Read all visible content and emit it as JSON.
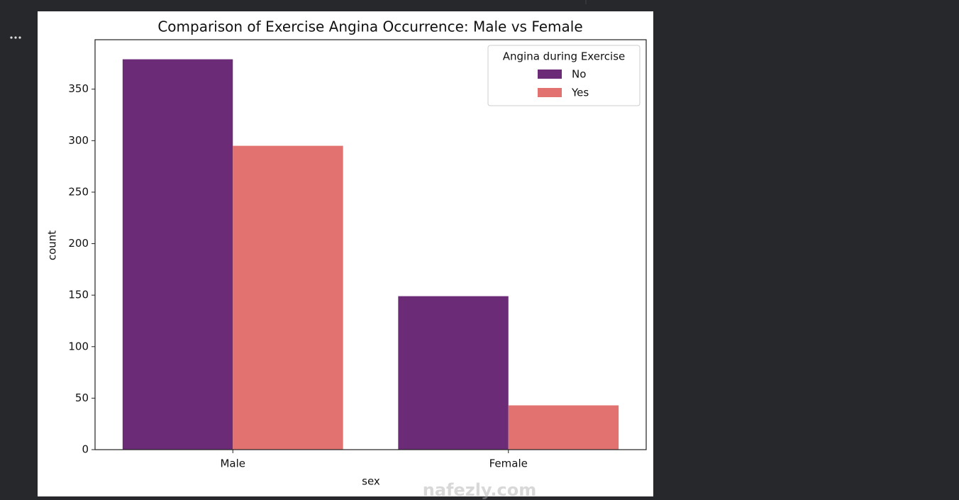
{
  "chart_data": {
    "type": "grouped_bar",
    "title": "Comparison of Exercise Angina Occurrence: Male vs Female",
    "x_label": "sex",
    "y_label": "count",
    "categories": [
      "Male",
      "Female"
    ],
    "legend_title": "Angina during Exercise",
    "legend_position": "upper right",
    "series": [
      {
        "name": "No",
        "color": "#6c2b77",
        "values": [
          379,
          149
        ]
      },
      {
        "name": "Yes",
        "color": "#e1726f",
        "values": [
          295,
          43
        ]
      }
    ],
    "ylim": [
      0,
      398
    ],
    "yticks": [
      0,
      50,
      100,
      150,
      200,
      250,
      300,
      350
    ],
    "grid": false,
    "watermark": "nafezly.com"
  }
}
